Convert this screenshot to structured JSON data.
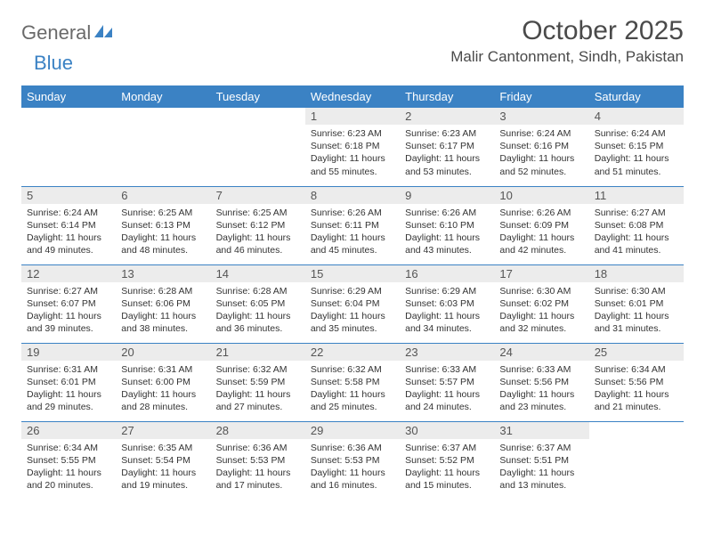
{
  "logo": {
    "word1": "General",
    "word2": "Blue"
  },
  "title": "October 2025",
  "location": "Malir Cantonment, Sindh, Pakistan",
  "weekdays": [
    "Sunday",
    "Monday",
    "Tuesday",
    "Wednesday",
    "Thursday",
    "Friday",
    "Saturday"
  ],
  "colors": {
    "header_bg": "#3b82c4",
    "header_text": "#ffffff",
    "daynum_bg": "#ececec",
    "border": "#3b82c4",
    "logo_gray": "#6a6a6a",
    "logo_blue": "#3b82c4"
  },
  "grid": [
    [
      null,
      null,
      null,
      {
        "n": "1",
        "sr": "6:23 AM",
        "ss": "6:18 PM",
        "dl": "11 hours and 55 minutes."
      },
      {
        "n": "2",
        "sr": "6:23 AM",
        "ss": "6:17 PM",
        "dl": "11 hours and 53 minutes."
      },
      {
        "n": "3",
        "sr": "6:24 AM",
        "ss": "6:16 PM",
        "dl": "11 hours and 52 minutes."
      },
      {
        "n": "4",
        "sr": "6:24 AM",
        "ss": "6:15 PM",
        "dl": "11 hours and 51 minutes."
      }
    ],
    [
      {
        "n": "5",
        "sr": "6:24 AM",
        "ss": "6:14 PM",
        "dl": "11 hours and 49 minutes."
      },
      {
        "n": "6",
        "sr": "6:25 AM",
        "ss": "6:13 PM",
        "dl": "11 hours and 48 minutes."
      },
      {
        "n": "7",
        "sr": "6:25 AM",
        "ss": "6:12 PM",
        "dl": "11 hours and 46 minutes."
      },
      {
        "n": "8",
        "sr": "6:26 AM",
        "ss": "6:11 PM",
        "dl": "11 hours and 45 minutes."
      },
      {
        "n": "9",
        "sr": "6:26 AM",
        "ss": "6:10 PM",
        "dl": "11 hours and 43 minutes."
      },
      {
        "n": "10",
        "sr": "6:26 AM",
        "ss": "6:09 PM",
        "dl": "11 hours and 42 minutes."
      },
      {
        "n": "11",
        "sr": "6:27 AM",
        "ss": "6:08 PM",
        "dl": "11 hours and 41 minutes."
      }
    ],
    [
      {
        "n": "12",
        "sr": "6:27 AM",
        "ss": "6:07 PM",
        "dl": "11 hours and 39 minutes."
      },
      {
        "n": "13",
        "sr": "6:28 AM",
        "ss": "6:06 PM",
        "dl": "11 hours and 38 minutes."
      },
      {
        "n": "14",
        "sr": "6:28 AM",
        "ss": "6:05 PM",
        "dl": "11 hours and 36 minutes."
      },
      {
        "n": "15",
        "sr": "6:29 AM",
        "ss": "6:04 PM",
        "dl": "11 hours and 35 minutes."
      },
      {
        "n": "16",
        "sr": "6:29 AM",
        "ss": "6:03 PM",
        "dl": "11 hours and 34 minutes."
      },
      {
        "n": "17",
        "sr": "6:30 AM",
        "ss": "6:02 PM",
        "dl": "11 hours and 32 minutes."
      },
      {
        "n": "18",
        "sr": "6:30 AM",
        "ss": "6:01 PM",
        "dl": "11 hours and 31 minutes."
      }
    ],
    [
      {
        "n": "19",
        "sr": "6:31 AM",
        "ss": "6:01 PM",
        "dl": "11 hours and 29 minutes."
      },
      {
        "n": "20",
        "sr": "6:31 AM",
        "ss": "6:00 PM",
        "dl": "11 hours and 28 minutes."
      },
      {
        "n": "21",
        "sr": "6:32 AM",
        "ss": "5:59 PM",
        "dl": "11 hours and 27 minutes."
      },
      {
        "n": "22",
        "sr": "6:32 AM",
        "ss": "5:58 PM",
        "dl": "11 hours and 25 minutes."
      },
      {
        "n": "23",
        "sr": "6:33 AM",
        "ss": "5:57 PM",
        "dl": "11 hours and 24 minutes."
      },
      {
        "n": "24",
        "sr": "6:33 AM",
        "ss": "5:56 PM",
        "dl": "11 hours and 23 minutes."
      },
      {
        "n": "25",
        "sr": "6:34 AM",
        "ss": "5:56 PM",
        "dl": "11 hours and 21 minutes."
      }
    ],
    [
      {
        "n": "26",
        "sr": "6:34 AM",
        "ss": "5:55 PM",
        "dl": "11 hours and 20 minutes."
      },
      {
        "n": "27",
        "sr": "6:35 AM",
        "ss": "5:54 PM",
        "dl": "11 hours and 19 minutes."
      },
      {
        "n": "28",
        "sr": "6:36 AM",
        "ss": "5:53 PM",
        "dl": "11 hours and 17 minutes."
      },
      {
        "n": "29",
        "sr": "6:36 AM",
        "ss": "5:53 PM",
        "dl": "11 hours and 16 minutes."
      },
      {
        "n": "30",
        "sr": "6:37 AM",
        "ss": "5:52 PM",
        "dl": "11 hours and 15 minutes."
      },
      {
        "n": "31",
        "sr": "6:37 AM",
        "ss": "5:51 PM",
        "dl": "11 hours and 13 minutes."
      },
      null
    ]
  ],
  "labels": {
    "sunrise": "Sunrise:",
    "sunset": "Sunset:",
    "daylight": "Daylight:"
  }
}
